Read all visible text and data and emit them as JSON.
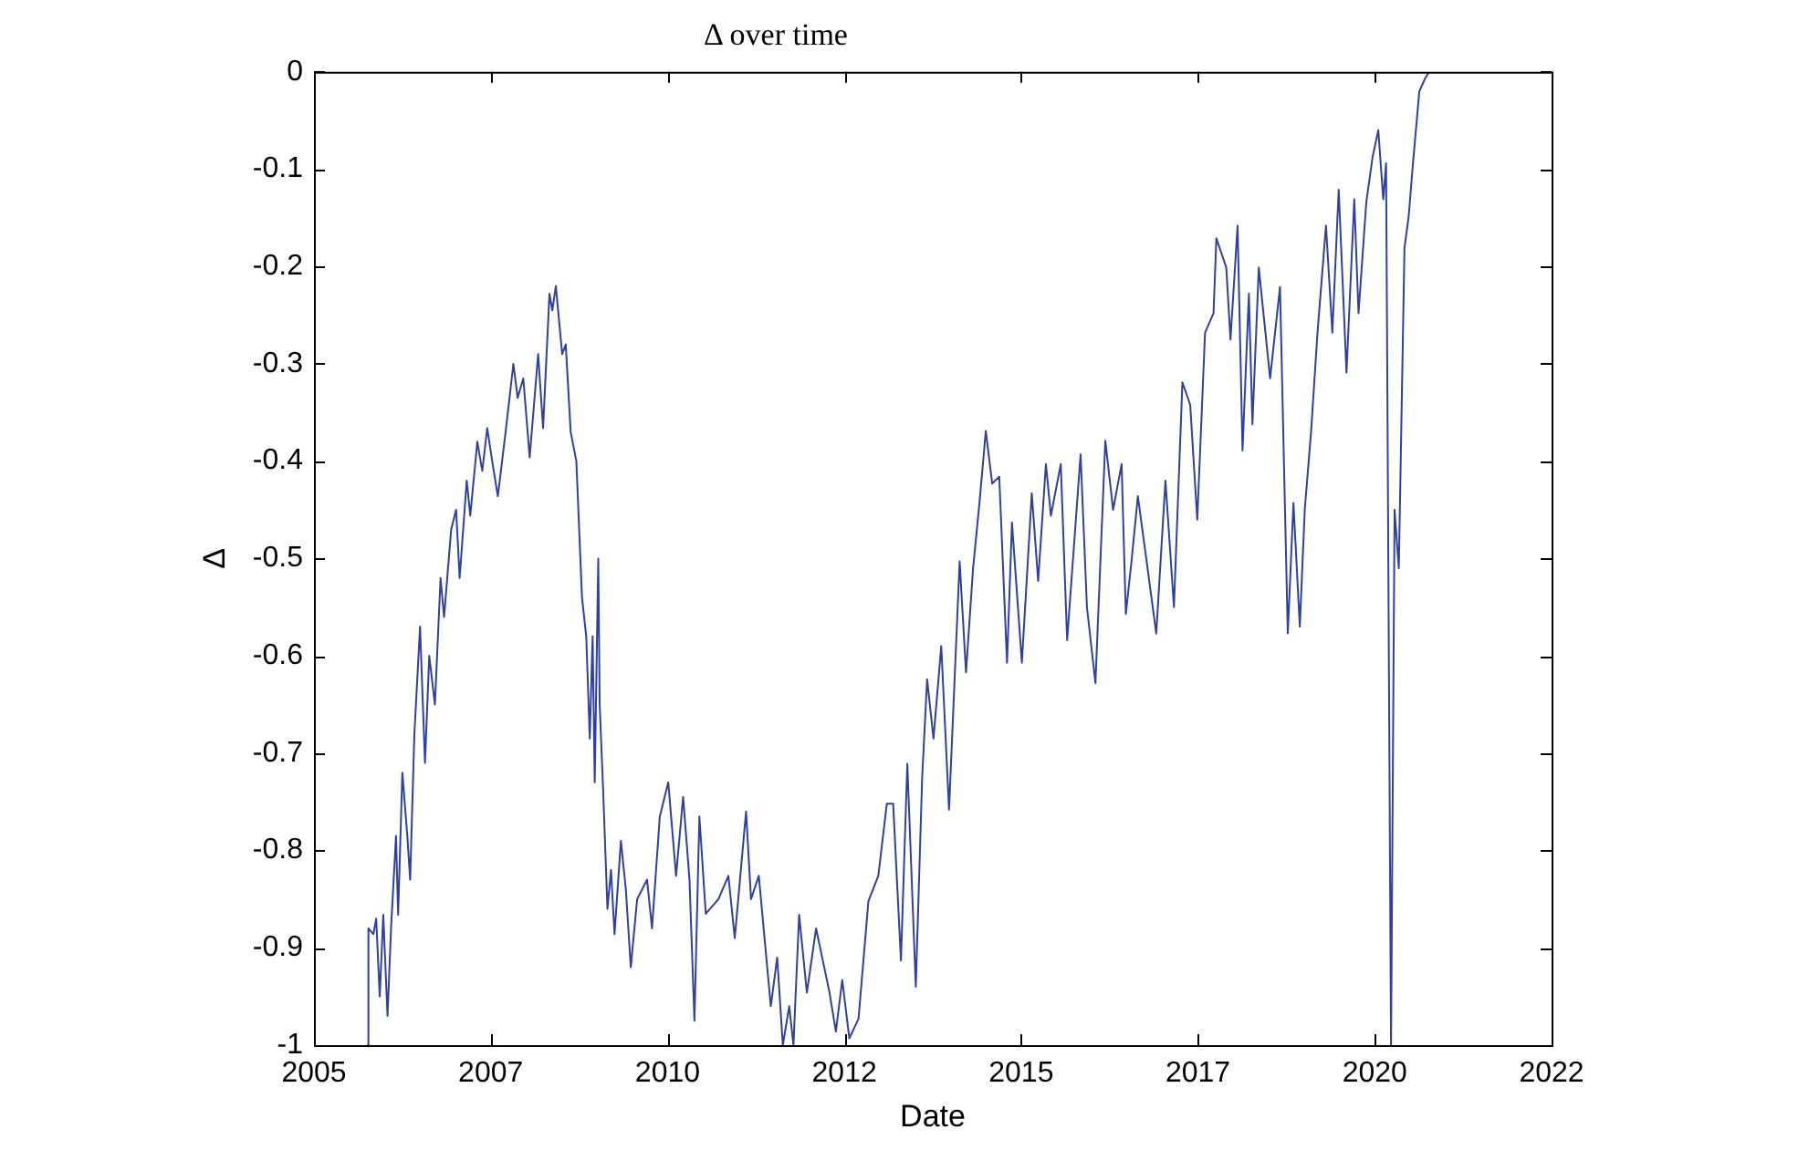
{
  "chart_data": {
    "type": "line",
    "title": "Δ over time",
    "xlabel": "Date",
    "ylabel": "Δ",
    "xlim": [
      2005,
      2022.5
    ],
    "xticks": [
      2005,
      {
        "value": 2007.5,
        "label": "2007"
      },
      2010,
      {
        "value": 2012.5,
        "label": "2012"
      },
      2015,
      {
        "value": 2017.5,
        "label": "2017"
      },
      2020,
      {
        "value": 2022.5,
        "label": "2022"
      }
    ],
    "ylim": [
      -1,
      0
    ],
    "yticks": [
      -1,
      -0.9,
      -0.8,
      -0.7,
      -0.6,
      -0.5,
      -0.4,
      -0.3,
      -0.2,
      -0.1,
      0
    ],
    "grid": false,
    "legend": false,
    "marker": "none",
    "line_style": "solid",
    "series": [
      {
        "color": "#3040a0",
        "x": [
          2005.75,
          2005.77,
          2005.84,
          2005.88,
          2005.93,
          2005.98,
          2006.04,
          2006.09,
          2006.16,
          2006.19,
          2006.25,
          2006.32,
          2006.36,
          2006.42,
          2006.5,
          2006.57,
          2006.63,
          2006.71,
          2006.79,
          2006.84,
          2006.94,
          2007.01,
          2007.06,
          2007.16,
          2007.21,
          2007.31,
          2007.38,
          2007.45,
          2007.52,
          2007.6,
          2007.71,
          2007.82,
          2007.88,
          2007.96,
          2008.05,
          2008.17,
          2008.24,
          2008.33,
          2008.37,
          2008.42,
          2008.51,
          2008.56,
          2008.63,
          2008.71,
          2008.79,
          2008.85,
          2008.9,
          2008.94,
          2008.97,
          2009.02,
          2009.04,
          2009.09,
          2009.15,
          2009.2,
          2009.25,
          2009.34,
          2009.41,
          2009.48,
          2009.57,
          2009.71,
          2009.78,
          2009.89,
          2010.01,
          2010.12,
          2010.22,
          2010.31,
          2010.38,
          2010.45,
          2010.54,
          2010.72,
          2010.86,
          2010.95,
          2011.11,
          2011.18,
          2011.29,
          2011.46,
          2011.55,
          2011.63,
          2011.72,
          2011.78,
          2011.86,
          2011.97,
          2012.1,
          2012.29,
          2012.38,
          2012.47,
          2012.57,
          2012.7,
          2012.84,
          2012.98,
          2013.1,
          2013.19,
          2013.3,
          2013.39,
          2013.51,
          2013.6,
          2013.67,
          2013.76,
          2013.87,
          2013.98,
          2014.13,
          2014.22,
          2014.32,
          2014.41,
          2014.5,
          2014.59,
          2014.69,
          2014.8,
          2014.87,
          2015.01,
          2015.15,
          2015.24,
          2015.35,
          2015.42,
          2015.56,
          2015.65,
          2015.84,
          2015.93,
          2016.05,
          2016.19,
          2016.3,
          2016.42,
          2016.48,
          2016.56,
          2016.65,
          2016.75,
          2016.91,
          2017.04,
          2017.16,
          2017.28,
          2017.39,
          2017.49,
          2017.6,
          2017.72,
          2017.76,
          2017.9,
          2017.96,
          2018.06,
          2018.13,
          2018.22,
          2018.27,
          2018.36,
          2018.52,
          2018.66,
          2018.77,
          2018.85,
          2018.94,
          2019.01,
          2019.1,
          2019.19,
          2019.31,
          2019.4,
          2019.49,
          2019.6,
          2019.71,
          2019.77,
          2019.88,
          2019.97,
          2020.05,
          2020.12,
          2020.16,
          2020.23,
          2020.28,
          2020.34,
          2020.42,
          2020.48,
          2020.54,
          2020.63,
          2020.71,
          2020.77
        ],
        "values": [
          -1.0,
          -0.88,
          -0.886,
          -0.87,
          -0.95,
          -0.866,
          -0.97,
          -0.88,
          -0.785,
          -0.866,
          -0.72,
          -0.785,
          -0.83,
          -0.68,
          -0.57,
          -0.71,
          -0.6,
          -0.65,
          -0.52,
          -0.56,
          -0.47,
          -0.45,
          -0.52,
          -0.42,
          -0.456,
          -0.38,
          -0.41,
          -0.366,
          -0.4,
          -0.436,
          -0.37,
          -0.3,
          -0.335,
          -0.315,
          -0.396,
          -0.29,
          -0.366,
          -0.228,
          -0.245,
          -0.22,
          -0.29,
          -0.28,
          -0.37,
          -0.4,
          -0.54,
          -0.58,
          -0.685,
          -0.58,
          -0.73,
          -0.5,
          -0.65,
          -0.74,
          -0.86,
          -0.82,
          -0.886,
          -0.79,
          -0.84,
          -0.92,
          -0.85,
          -0.83,
          -0.88,
          -0.765,
          -0.73,
          -0.826,
          -0.745,
          -0.83,
          -0.975,
          -0.765,
          -0.865,
          -0.85,
          -0.826,
          -0.89,
          -0.76,
          -0.85,
          -0.826,
          -0.96,
          -0.91,
          -1.0,
          -0.96,
          -1.0,
          -0.866,
          -0.946,
          -0.88,
          -0.946,
          -0.986,
          -0.933,
          -0.993,
          -0.973,
          -0.852,
          -0.826,
          -0.752,
          -0.752,
          -0.913,
          -0.711,
          -0.94,
          -0.725,
          -0.624,
          -0.685,
          -0.59,
          -0.758,
          -0.503,
          -0.617,
          -0.51,
          -0.443,
          -0.369,
          -0.423,
          -0.416,
          -0.607,
          -0.463,
          -0.607,
          -0.433,
          -0.523,
          -0.403,
          -0.456,
          -0.403,
          -0.584,
          -0.393,
          -0.55,
          -0.628,
          -0.379,
          -0.45,
          -0.403,
          -0.557,
          -0.503,
          -0.436,
          -0.49,
          -0.577,
          -0.42,
          -0.55,
          -0.319,
          -0.342,
          -0.46,
          -0.268,
          -0.248,
          -0.171,
          -0.201,
          -0.275,
          -0.158,
          -0.389,
          -0.228,
          -0.362,
          -0.201,
          -0.315,
          -0.221,
          -0.577,
          -0.443,
          -0.57,
          -0.45,
          -0.369,
          -0.268,
          -0.158,
          -0.268,
          -0.121,
          -0.309,
          -0.131,
          -0.248,
          -0.134,
          -0.087,
          -0.06,
          -0.131,
          -0.094,
          -1.0,
          -0.45,
          -0.51,
          -0.181,
          -0.148,
          -0.094,
          -0.02,
          -0.007,
          0.0
        ]
      }
    ]
  }
}
